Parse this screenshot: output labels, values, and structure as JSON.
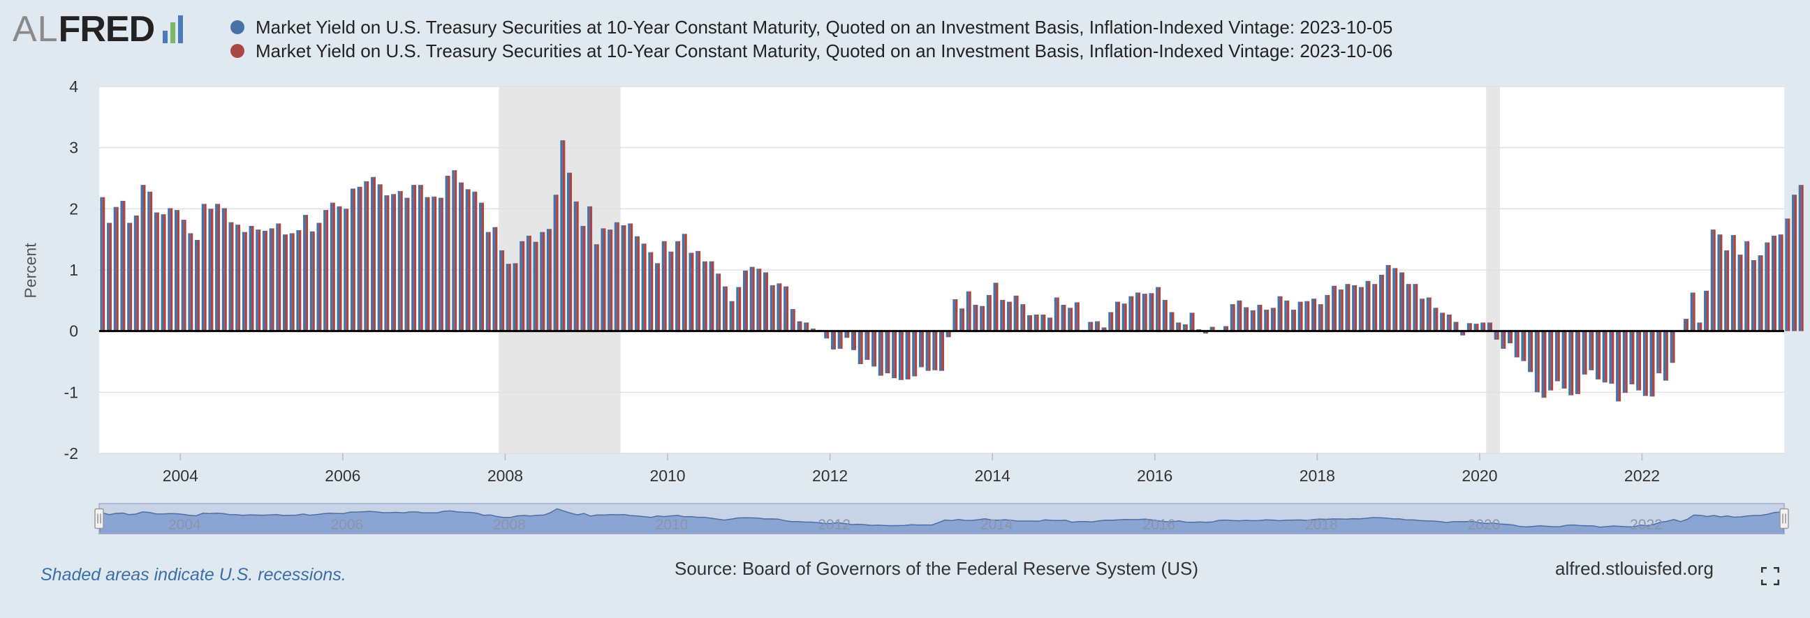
{
  "logo": {
    "al": "AL",
    "fred": "FRED",
    "bar_colors": [
      "#4a7bb7",
      "#7fb46a",
      "#4a7bb7"
    ]
  },
  "legend": [
    {
      "label": "Market Yield on U.S. Treasury Securities at 10-Year Constant Maturity, Quoted on an Investment Basis, Inflation-Indexed Vintage: 2023-10-05",
      "color": "#4572a7"
    },
    {
      "label": "Market Yield on U.S. Treasury Securities at 10-Year Constant Maturity, Quoted on an Investment Basis, Inflation-Indexed Vintage: 2023-10-06",
      "color": "#aa4643"
    }
  ],
  "footer": {
    "recession_note": "Shaded areas indicate U.S. recessions.",
    "source": "Source: Board of Governors of the Federal Reserve System (US)",
    "url": "alfred.stlouisfed.org"
  },
  "chart_data": {
    "type": "bar",
    "title": "",
    "xlabel": "",
    "ylabel": "Percent",
    "ylim": [
      -2,
      4
    ],
    "yticks": [
      4,
      3,
      2,
      1,
      0,
      -1,
      -2
    ],
    "xlim": [
      2003.0,
      2023.75
    ],
    "xticks": [
      2004,
      2006,
      2008,
      2010,
      2012,
      2014,
      2016,
      2018,
      2020,
      2022
    ],
    "navigator_labels": [
      2004,
      2006,
      2008,
      2010,
      2012,
      2014,
      2016,
      2018,
      2020,
      2022
    ],
    "frequency": "monthly",
    "start": "2003-01",
    "recessions": [
      [
        2007.92,
        2009.42
      ],
      [
        2020.08,
        2020.25
      ]
    ],
    "series": [
      {
        "name": "Vintage: 2023-10-05",
        "color": "#4572a7",
        "values": [
          2.19,
          1.77,
          2.03,
          2.13,
          1.77,
          1.89,
          2.39,
          2.28,
          1.94,
          1.91,
          2.01,
          1.98,
          1.82,
          1.6,
          1.49,
          2.08,
          2.0,
          2.08,
          2.01,
          1.78,
          1.74,
          1.62,
          1.72,
          1.66,
          1.64,
          1.68,
          1.76,
          1.58,
          1.6,
          1.65,
          1.9,
          1.63,
          1.77,
          1.98,
          2.1,
          2.04,
          2.0,
          2.33,
          2.36,
          2.45,
          2.52,
          2.4,
          2.22,
          2.24,
          2.29,
          2.18,
          2.39,
          2.39,
          2.19,
          2.2,
          2.18,
          2.54,
          2.63,
          2.43,
          2.32,
          2.28,
          2.1,
          1.62,
          1.7,
          1.32,
          1.1,
          1.11,
          1.47,
          1.56,
          1.46,
          1.62,
          1.67,
          2.23,
          3.12,
          2.59,
          2.12,
          1.72,
          2.04,
          1.42,
          1.68,
          1.66,
          1.78,
          1.73,
          1.76,
          1.55,
          1.43,
          1.29,
          1.11,
          1.47,
          1.3,
          1.47,
          1.59,
          1.28,
          1.31,
          1.14,
          1.14,
          0.94,
          0.73,
          0.49,
          0.72,
          0.99,
          1.05,
          1.02,
          0.96,
          0.75,
          0.78,
          0.73,
          0.36,
          0.16,
          0.14,
          0.04,
          0.02,
          -0.12,
          -0.3,
          -0.29,
          -0.11,
          -0.31,
          -0.54,
          -0.47,
          -0.58,
          -0.73,
          -0.69,
          -0.77,
          -0.8,
          -0.79,
          -0.74,
          -0.59,
          -0.65,
          -0.64,
          -0.65,
          -0.1,
          0.52,
          0.37,
          0.65,
          0.43,
          0.41,
          0.59,
          0.79,
          0.51,
          0.48,
          0.58,
          0.44,
          0.26,
          0.27,
          0.27,
          0.22,
          0.55,
          0.43,
          0.38,
          0.47,
          0.0,
          0.15,
          0.16,
          0.06,
          0.31,
          0.48,
          0.45,
          0.57,
          0.63,
          0.61,
          0.62,
          0.72,
          0.51,
          0.31,
          0.14,
          0.11,
          0.3,
          0.03,
          -0.04,
          0.07,
          0.0,
          0.08,
          0.44,
          0.5,
          0.39,
          0.34,
          0.43,
          0.35,
          0.38,
          0.57,
          0.5,
          0.35,
          0.48,
          0.49,
          0.53,
          0.44,
          0.59,
          0.74,
          0.68,
          0.77,
          0.75,
          0.72,
          0.82,
          0.77,
          0.92,
          1.08,
          1.03,
          0.96,
          0.77,
          0.77,
          0.53,
          0.55,
          0.38,
          0.3,
          0.27,
          0.15,
          -0.07,
          0.13,
          0.12,
          0.14,
          0.14,
          -0.14,
          -0.29,
          -0.2,
          -0.43,
          -0.49,
          -0.67,
          -1.0,
          -1.09,
          -0.97,
          -0.82,
          -0.94,
          -1.05,
          -1.03,
          -0.71,
          -0.64,
          -0.79,
          -0.84,
          -0.86,
          -1.15,
          -1.01,
          -0.87,
          -0.97,
          -1.06,
          -1.07,
          -0.69,
          -0.81,
          -0.52,
          0.0,
          0.2,
          0.63,
          0.14,
          0.66,
          1.66,
          1.58,
          1.32,
          1.57,
          1.25,
          1.47,
          1.16,
          1.24,
          1.45,
          1.56,
          1.58,
          1.84,
          2.23,
          2.39
        ]
      },
      {
        "name": "Vintage: 2023-10-06",
        "color": "#aa4643",
        "values": [
          2.19,
          1.77,
          2.03,
          2.13,
          1.77,
          1.89,
          2.39,
          2.28,
          1.94,
          1.91,
          2.01,
          1.98,
          1.82,
          1.6,
          1.49,
          2.08,
          2.0,
          2.08,
          2.01,
          1.78,
          1.74,
          1.62,
          1.72,
          1.66,
          1.64,
          1.68,
          1.76,
          1.58,
          1.6,
          1.65,
          1.9,
          1.63,
          1.77,
          1.98,
          2.1,
          2.04,
          2.0,
          2.33,
          2.36,
          2.45,
          2.52,
          2.4,
          2.22,
          2.24,
          2.29,
          2.18,
          2.39,
          2.39,
          2.19,
          2.2,
          2.18,
          2.54,
          2.63,
          2.43,
          2.32,
          2.28,
          2.1,
          1.62,
          1.7,
          1.32,
          1.1,
          1.11,
          1.47,
          1.56,
          1.46,
          1.62,
          1.67,
          2.23,
          3.12,
          2.59,
          2.12,
          1.72,
          2.04,
          1.42,
          1.68,
          1.66,
          1.78,
          1.73,
          1.76,
          1.55,
          1.43,
          1.29,
          1.11,
          1.47,
          1.3,
          1.47,
          1.59,
          1.28,
          1.31,
          1.14,
          1.14,
          0.94,
          0.73,
          0.49,
          0.72,
          0.99,
          1.05,
          1.02,
          0.96,
          0.75,
          0.78,
          0.73,
          0.36,
          0.16,
          0.14,
          0.04,
          0.02,
          -0.12,
          -0.3,
          -0.29,
          -0.11,
          -0.31,
          -0.54,
          -0.47,
          -0.58,
          -0.73,
          -0.69,
          -0.77,
          -0.8,
          -0.79,
          -0.74,
          -0.59,
          -0.65,
          -0.64,
          -0.65,
          -0.1,
          0.52,
          0.37,
          0.65,
          0.43,
          0.41,
          0.59,
          0.79,
          0.51,
          0.48,
          0.58,
          0.44,
          0.26,
          0.27,
          0.27,
          0.22,
          0.55,
          0.43,
          0.38,
          0.47,
          0.0,
          0.15,
          0.16,
          0.06,
          0.31,
          0.48,
          0.45,
          0.57,
          0.63,
          0.61,
          0.62,
          0.72,
          0.51,
          0.31,
          0.14,
          0.11,
          0.3,
          0.03,
          -0.04,
          0.07,
          0.0,
          0.08,
          0.44,
          0.5,
          0.39,
          0.34,
          0.43,
          0.35,
          0.38,
          0.57,
          0.5,
          0.35,
          0.48,
          0.49,
          0.53,
          0.44,
          0.59,
          0.74,
          0.68,
          0.77,
          0.75,
          0.72,
          0.82,
          0.77,
          0.92,
          1.08,
          1.03,
          0.96,
          0.77,
          0.77,
          0.53,
          0.55,
          0.38,
          0.3,
          0.27,
          0.15,
          -0.07,
          0.13,
          0.12,
          0.14,
          0.14,
          -0.14,
          -0.29,
          -0.2,
          -0.43,
          -0.49,
          -0.67,
          -1.0,
          -1.09,
          -0.97,
          -0.82,
          -0.94,
          -1.05,
          -1.03,
          -0.71,
          -0.64,
          -0.79,
          -0.84,
          -0.86,
          -1.15,
          -1.01,
          -0.87,
          -0.97,
          -1.06,
          -1.07,
          -0.69,
          -0.81,
          -0.52,
          0.0,
          0.2,
          0.63,
          0.14,
          0.66,
          1.66,
          1.58,
          1.32,
          1.57,
          1.25,
          1.47,
          1.16,
          1.24,
          1.45,
          1.56,
          1.58,
          1.84,
          2.23,
          2.39
        ]
      }
    ]
  }
}
